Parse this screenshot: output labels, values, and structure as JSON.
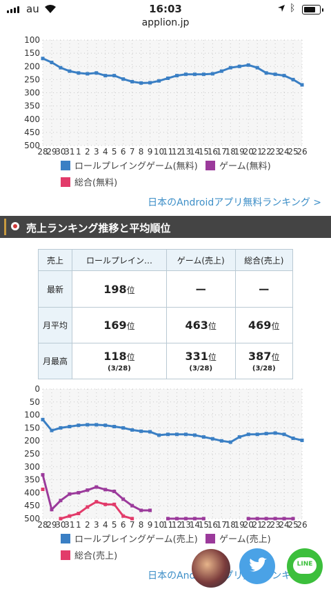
{
  "status": {
    "carrier": "au",
    "time": "16:03",
    "url": "applion.jp"
  },
  "free_section": {
    "link": "日本のAndroidアプリ無料ランキング >",
    "chart": {
      "type": "line",
      "x": [
        "28",
        "29",
        "30",
        "31",
        "1",
        "2",
        "3",
        "4",
        "5",
        "6",
        "7",
        "8",
        "9",
        "10",
        "11",
        "12",
        "13",
        "14",
        "15",
        "16",
        "17",
        "18",
        "19",
        "20",
        "21",
        "22",
        "23",
        "24",
        "25",
        "26"
      ],
      "yticks": [
        "100",
        "150",
        "200",
        "250",
        "300",
        "350",
        "400",
        "450",
        "500"
      ],
      "ylim": [
        100,
        500
      ],
      "series": [
        {
          "name": "ロールプレイングゲーム(無料)",
          "color": "#3a7fc4",
          "values": [
            170,
            185,
            205,
            218,
            225,
            228,
            225,
            235,
            235,
            248,
            258,
            263,
            262,
            255,
            245,
            235,
            230,
            230,
            230,
            228,
            218,
            205,
            200,
            195,
            205,
            225,
            230,
            235,
            250,
            270
          ]
        },
        {
          "name": "ゲーム(無料)",
          "color": "#9b3a9b",
          "values": []
        },
        {
          "name": "総合(無料)",
          "color": "#e23b6a",
          "values": []
        }
      ]
    }
  },
  "sales_section": {
    "title": "売上ランキング推移と平均順位",
    "table": {
      "corner": "売上",
      "headers": [
        "ロールプレイン…",
        "ゲーム(売上)",
        "総合(売上)"
      ],
      "rows": [
        {
          "label": "最新",
          "cells": [
            {
              "rank": "198",
              "unit": "位",
              "date": ""
            },
            {
              "rank": "ー",
              "unit": "",
              "date": ""
            },
            {
              "rank": "ー",
              "unit": "",
              "date": ""
            }
          ]
        },
        {
          "label": "月平均",
          "cells": [
            {
              "rank": "169",
              "unit": "位",
              "date": ""
            },
            {
              "rank": "463",
              "unit": "位",
              "date": ""
            },
            {
              "rank": "469",
              "unit": "位",
              "date": ""
            }
          ]
        },
        {
          "label": "月最高",
          "cells": [
            {
              "rank": "118",
              "unit": "位",
              "date": "(3/28)"
            },
            {
              "rank": "331",
              "unit": "位",
              "date": "(3/28)"
            },
            {
              "rank": "387",
              "unit": "位",
              "date": "(3/28)"
            }
          ]
        }
      ]
    },
    "link": "日本のAndroidアプリ売上ランキング >",
    "chart": {
      "type": "line",
      "x": [
        "28",
        "29",
        "30",
        "31",
        "1",
        "2",
        "3",
        "4",
        "5",
        "6",
        "7",
        "8",
        "9",
        "10",
        "11",
        "12",
        "13",
        "14",
        "15",
        "16",
        "17",
        "18",
        "19",
        "20",
        "21",
        "22",
        "23",
        "24",
        "25",
        "26"
      ],
      "yticks": [
        "0",
        "50",
        "100",
        "150",
        "200",
        "250",
        "300",
        "350",
        "400",
        "450",
        "500"
      ],
      "ylim": [
        0,
        500
      ],
      "series": [
        {
          "name": "ロールプレイングゲーム(売上)",
          "color": "#3a7fc4",
          "values": [
            118,
            160,
            150,
            145,
            140,
            138,
            138,
            140,
            145,
            150,
            158,
            163,
            165,
            178,
            175,
            175,
            175,
            178,
            185,
            192,
            200,
            205,
            185,
            175,
            175,
            172,
            170,
            175,
            190,
            198
          ]
        },
        {
          "name": "ゲーム(売上)",
          "color": "#9b3a9b",
          "values": [
            331,
            465,
            430,
            405,
            400,
            390,
            378,
            388,
            395,
            425,
            450,
            468,
            468,
            null,
            500,
            500,
            500,
            500,
            500,
            null,
            null,
            null,
            null,
            500,
            500,
            500,
            500,
            500,
            500,
            null
          ]
        },
        {
          "name": "総合(売上)",
          "color": "#e23b6a",
          "values": [
            387,
            null,
            500,
            490,
            480,
            455,
            435,
            445,
            445,
            490,
            500,
            null,
            null,
            null,
            null,
            null,
            null,
            null,
            null,
            null,
            null,
            null,
            null,
            null,
            null,
            null,
            null,
            null,
            null,
            null
          ]
        }
      ]
    }
  },
  "social": {
    "twitter": "twitter-icon",
    "line_label": "LINE"
  }
}
